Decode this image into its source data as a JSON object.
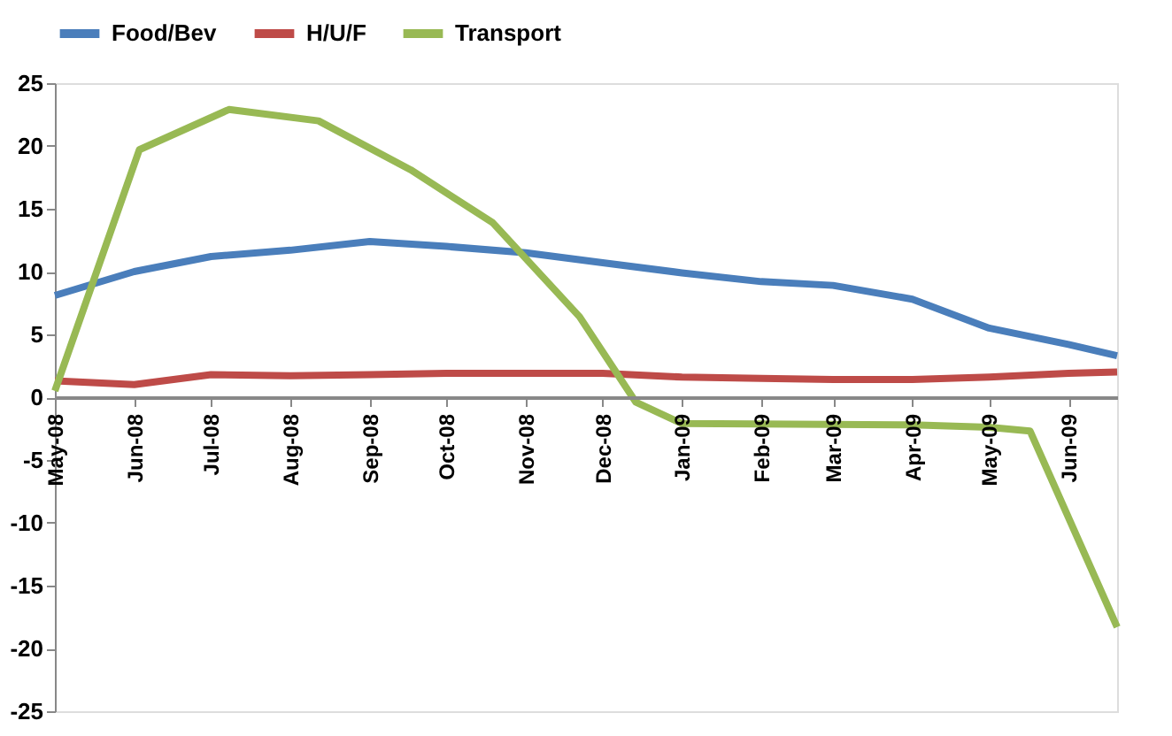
{
  "chart_data": {
    "type": "line",
    "x": [
      "2008-05-01",
      "2008-06-01",
      "2008-07-01",
      "2008-08-01",
      "2008-09-01",
      "2008-10-01",
      "2008-11-01",
      "2008-12-01",
      "2009-01-01",
      "2009-02-01",
      "2009-03-01",
      "2009-04-01",
      "2009-05-01",
      "2009-06-01",
      "2009-06-20"
    ],
    "series": [
      {
        "name": "Food/Bev",
        "color": "#4a7ebb",
        "values": [
          8.1,
          10.0,
          11.2,
          11.7,
          12.4,
          12.0,
          11.5,
          10.7,
          9.9,
          9.2,
          8.9,
          7.8,
          5.5,
          4.2,
          3.3
        ]
      },
      {
        "name": "H/U/F",
        "color": "#be4b48",
        "values": [
          1.3,
          1.0,
          1.8,
          1.7,
          1.8,
          1.9,
          1.9,
          1.9,
          1.6,
          1.5,
          1.4,
          1.4,
          1.6,
          1.9,
          2.0
        ]
      },
      {
        "name": "Transport",
        "color": "#98b954",
        "x": [
          "2008-05-01",
          "2008-06-03",
          "2008-07-08",
          "2008-08-12",
          "2008-09-17",
          "2008-10-19",
          "2008-11-22",
          "2008-12-14",
          "2009-01-01",
          "2009-04-01",
          "2009-05-01",
          "2009-05-17",
          "2009-06-20"
        ],
        "values": [
          0.5,
          19.7,
          22.9,
          22.0,
          18.1,
          13.9,
          6.4,
          -0.4,
          -2.1,
          -2.2,
          -2.4,
          -2.7,
          -18.3
        ]
      }
    ],
    "xlim": [
      "2008-05-01",
      "2009-06-20"
    ],
    "xticks": [
      {
        "value": "2008-05",
        "label": "May-08"
      },
      {
        "value": "2008-06",
        "label": "Jun-08"
      },
      {
        "value": "2008-07",
        "label": "Jul-08"
      },
      {
        "value": "2008-08",
        "label": "Aug-08"
      },
      {
        "value": "2008-09",
        "label": "Sep-08"
      },
      {
        "value": "2008-10",
        "label": "Oct-08"
      },
      {
        "value": "2008-11",
        "label": "Nov-08"
      },
      {
        "value": "2008-12",
        "label": "Dec-08"
      },
      {
        "value": "2009-01",
        "label": "Jan-09"
      },
      {
        "value": "2009-02",
        "label": "Feb-09"
      },
      {
        "value": "2009-03",
        "label": "Mar-09"
      },
      {
        "value": "2009-04",
        "label": "Apr-09"
      },
      {
        "value": "2009-05",
        "label": "May-09"
      },
      {
        "value": "2009-06",
        "label": "Jun-09"
      }
    ],
    "ylim": [
      -25,
      25
    ],
    "yticks": [
      -25,
      -20,
      -15,
      -10,
      -5,
      0,
      5,
      10,
      15,
      20,
      25
    ],
    "grid": false,
    "legend": "top",
    "marker": "none",
    "line_style": "solid"
  }
}
